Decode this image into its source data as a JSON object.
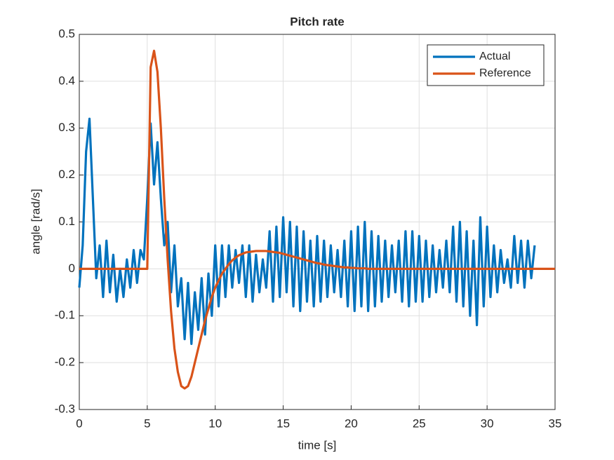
{
  "chart_data": {
    "type": "line",
    "title": "Pitch rate",
    "xlabel": "time [s]",
    "ylabel": "angle [rad/s]",
    "x": [
      0,
      0.25,
      0.5,
      0.75,
      1,
      1.25,
      1.5,
      1.75,
      2,
      2.25,
      2.5,
      2.75,
      3,
      3.25,
      3.5,
      3.75,
      4,
      4.25,
      4.5,
      4.75,
      5,
      5.25,
      5.5,
      5.75,
      6,
      6.25,
      6.5,
      6.75,
      7,
      7.25,
      7.5,
      7.75,
      8,
      8.25,
      8.5,
      8.75,
      9,
      9.25,
      9.5,
      9.75,
      10,
      10.25,
      10.5,
      10.75,
      11,
      11.25,
      11.5,
      11.75,
      12,
      12.25,
      12.5,
      12.75,
      13,
      13.25,
      13.5,
      13.75,
      14,
      14.25,
      14.5,
      14.75,
      15,
      15.25,
      15.5,
      15.75,
      16,
      16.25,
      16.5,
      16.75,
      17,
      17.25,
      17.5,
      17.75,
      18,
      18.25,
      18.5,
      18.75,
      19,
      19.25,
      19.5,
      19.75,
      20,
      20.25,
      20.5,
      20.75,
      21,
      21.25,
      21.5,
      21.75,
      22,
      22.25,
      22.5,
      22.75,
      23,
      23.25,
      23.5,
      23.75,
      24,
      24.25,
      24.5,
      24.75,
      25,
      25.25,
      25.5,
      25.75,
      26,
      26.25,
      26.5,
      26.75,
      27,
      27.25,
      27.5,
      27.75,
      28,
      28.25,
      28.5,
      28.75,
      29,
      29.25,
      29.5,
      29.75,
      30,
      30.25,
      30.5,
      30.75,
      31,
      31.25,
      31.5,
      31.75,
      32,
      32.25,
      32.5,
      32.75,
      33,
      33.25,
      33.5,
      33.75,
      34,
      34.25,
      34.5,
      34.75,
      35
    ],
    "series": [
      {
        "name": "Actual",
        "color": "#0072bd",
        "values": [
          -0.04,
          0.05,
          0.25,
          0.32,
          0.15,
          -0.02,
          0.05,
          -0.06,
          0.06,
          -0.05,
          0.03,
          -0.07,
          0.0,
          -0.06,
          0.02,
          -0.04,
          0.04,
          -0.03,
          0.04,
          0.02,
          0.15,
          0.31,
          0.18,
          0.27,
          0.15,
          0.05,
          0.1,
          -0.05,
          0.05,
          -0.08,
          -0.02,
          -0.15,
          -0.03,
          -0.16,
          -0.05,
          -0.13,
          -0.02,
          -0.14,
          -0.01,
          -0.1,
          0.05,
          -0.08,
          0.05,
          -0.06,
          0.05,
          -0.04,
          0.04,
          -0.03,
          0.05,
          -0.06,
          0.05,
          -0.07,
          0.03,
          -0.05,
          0.02,
          -0.04,
          0.08,
          -0.07,
          0.09,
          -0.06,
          0.11,
          -0.05,
          0.1,
          -0.08,
          0.09,
          -0.09,
          0.08,
          -0.07,
          0.06,
          -0.08,
          0.07,
          -0.07,
          0.06,
          -0.06,
          0.05,
          -0.05,
          0.04,
          -0.06,
          0.06,
          -0.08,
          0.08,
          -0.09,
          0.09,
          -0.08,
          0.1,
          -0.09,
          0.08,
          -0.08,
          0.07,
          -0.07,
          0.06,
          -0.06,
          0.05,
          -0.05,
          0.06,
          -0.07,
          0.08,
          -0.08,
          0.08,
          -0.07,
          0.07,
          -0.07,
          0.06,
          -0.06,
          0.05,
          -0.05,
          0.04,
          -0.04,
          0.06,
          -0.05,
          0.09,
          -0.07,
          0.1,
          -0.08,
          0.08,
          -0.1,
          0.06,
          -0.12,
          0.11,
          -0.08,
          0.09,
          -0.06,
          0.05,
          -0.05,
          0.04,
          -0.03,
          0.02,
          -0.04,
          0.07,
          -0.03,
          0.06,
          -0.04,
          0.06,
          -0.02,
          0.05,
          null,
          null,
          null,
          null,
          null,
          null
        ]
      },
      {
        "name": "Reference",
        "color": "#d95319",
        "values": [
          0,
          0,
          0,
          0,
          0,
          0,
          0,
          0,
          0,
          0,
          0,
          0,
          0,
          0,
          0,
          0,
          0,
          0,
          0,
          0,
          0,
          0.43,
          0.465,
          0.42,
          0.3,
          0.15,
          0.02,
          -0.09,
          -0.17,
          -0.22,
          -0.25,
          -0.255,
          -0.25,
          -0.23,
          -0.2,
          -0.17,
          -0.14,
          -0.11,
          -0.085,
          -0.06,
          -0.04,
          -0.025,
          -0.01,
          0.0,
          0.01,
          0.018,
          0.024,
          0.029,
          0.032,
          0.035,
          0.036,
          0.037,
          0.038,
          0.038,
          0.038,
          0.038,
          0.037,
          0.036,
          0.035,
          0.034,
          0.032,
          0.03,
          0.028,
          0.026,
          0.024,
          0.022,
          0.02,
          0.018,
          0.016,
          0.014,
          0.012,
          0.011,
          0.009,
          0.008,
          0.007,
          0.006,
          0.005,
          0.004,
          0.003,
          0.003,
          0.002,
          0.002,
          0.001,
          0.001,
          0.001,
          0,
          0,
          0,
          0,
          0,
          0,
          0,
          0,
          0,
          0,
          0,
          0,
          0,
          0,
          0,
          0,
          0,
          0,
          0,
          0,
          0,
          0,
          0,
          0,
          0,
          0,
          0,
          0,
          0,
          0,
          0,
          0,
          0,
          0,
          0,
          0,
          0,
          0,
          0,
          0,
          0,
          0,
          0,
          0,
          0,
          0,
          0,
          0,
          0,
          0,
          0,
          0,
          0,
          0,
          0,
          0
        ]
      }
    ],
    "xlim": [
      0,
      35
    ],
    "xticks": [
      0,
      5,
      10,
      15,
      20,
      25,
      30,
      35
    ],
    "ylim": [
      -0.3,
      0.5
    ],
    "yticks": [
      -0.3,
      -0.2,
      -0.1,
      0,
      0.1,
      0.2,
      0.3,
      0.4,
      0.5
    ],
    "grid": true,
    "legend": "northeast"
  }
}
